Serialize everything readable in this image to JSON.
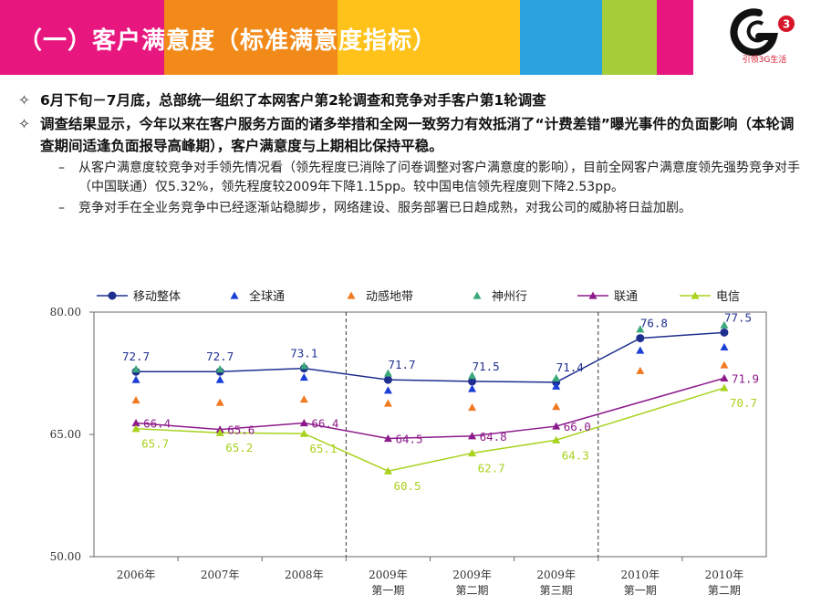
{
  "page": {
    "title": "（一）客户满意度（标准满意度指标）",
    "logo_slogan": "引领3G生活",
    "colors": {
      "banner": [
        "#e8177f",
        "#f28a1a",
        "#ffc21a",
        "#2aa3df",
        "#a5cd39",
        "#e8177f"
      ],
      "brand_red": "#d6162a"
    }
  },
  "bullets": [
    {
      "marker": "✧",
      "text": "6月下旬－7月底，总部统一组织了本网客户第2轮调查和竞争对手客户第1轮调查",
      "sub": []
    },
    {
      "marker": "✧",
      "text": "调查结果显示，今年以来在客户服务方面的诸多举措和全网一致努力有效抵消了“计费差错”曝光事件的负面影响（本轮调查期间适逢负面报导高峰期），客户满意度与上期相比保持平稳。",
      "sub": [
        {
          "marker": "–",
          "text": "从客户满意度较竞争对手领先情况看（领先程度已消除了问卷调整对客户满意度的影响），目前全网客户满意度领先强势竞争对手（中国联通）仅5.32%，领先程度较2009年下降1.15pp。较中国电信领先程度则下降2.53pp。"
        },
        {
          "marker": "–",
          "text": "竞争对手在全业务竞争中已经逐渐站稳脚步，网络建设、服务部署已日趋成熟，对我公司的威胁将日益加剧。"
        }
      ]
    }
  ],
  "chart_data": {
    "type": "line",
    "categories": [
      "2006年",
      "2007年",
      "2008年",
      "2009年\n第一期",
      "2009年\n第二期",
      "2009年\n第三期",
      "2010年\n第一期",
      "2010年\n第二期"
    ],
    "ylim": [
      50,
      80
    ],
    "yticks": [
      "50.00",
      "65.00",
      "80.00"
    ],
    "ytick_values": [
      50,
      65,
      80
    ],
    "legend_position": "top",
    "period_separators_after": [
      2,
      5
    ],
    "series": [
      {
        "name": "移动整体",
        "color": "#1f2f8f",
        "marker": "circle",
        "line": true,
        "labeled": true,
        "label_side": "above",
        "values": [
          72.7,
          72.7,
          73.1,
          71.7,
          71.5,
          71.4,
          76.8,
          77.5
        ]
      },
      {
        "name": "全球通",
        "color": "#1a3fd6",
        "marker": "triangle",
        "line": false,
        "labeled": false,
        "values": [
          71.7,
          71.7,
          72.0,
          70.4,
          70.6,
          70.9,
          75.3,
          75.7
        ]
      },
      {
        "name": "动感地带",
        "color": "#f07a22",
        "marker": "triangle",
        "line": false,
        "labeled": false,
        "values": [
          69.2,
          68.9,
          69.3,
          68.8,
          68.3,
          68.4,
          72.8,
          73.5
        ]
      },
      {
        "name": "神州行",
        "color": "#3aa879",
        "marker": "triangle",
        "line": false,
        "labeled": false,
        "values": [
          73.0,
          73.0,
          73.4,
          72.5,
          72.2,
          71.9,
          77.9,
          78.4
        ]
      },
      {
        "name": "联通",
        "color": "#8c1a8a",
        "marker": "triangle",
        "line": true,
        "labeled": true,
        "label_side": "right",
        "values": [
          66.4,
          65.6,
          66.4,
          64.5,
          64.8,
          66.0,
          null,
          71.9
        ]
      },
      {
        "name": "电信",
        "color": "#a8d21d",
        "marker": "triangle",
        "line": true,
        "labeled": true,
        "label_side": "below",
        "values": [
          65.7,
          65.2,
          65.1,
          60.5,
          62.7,
          64.3,
          null,
          70.7
        ]
      }
    ]
  }
}
